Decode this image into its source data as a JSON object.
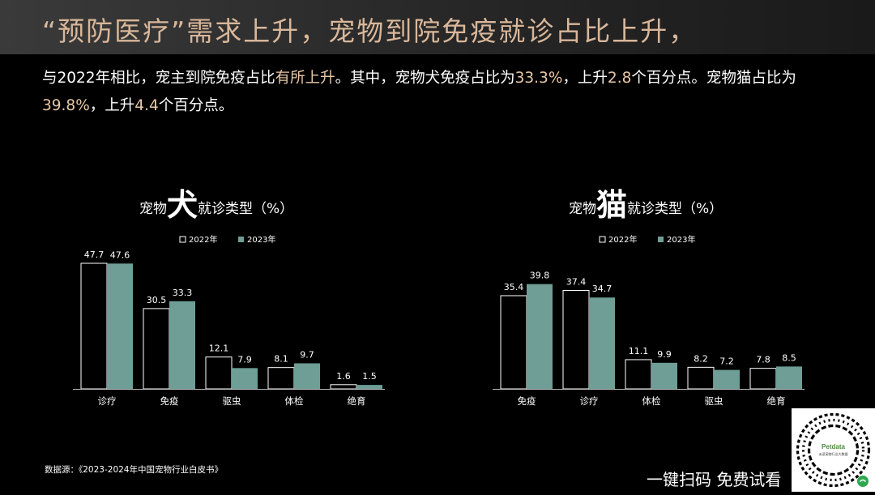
{
  "header": {
    "title": "“预防医疗”需求上升，宠物到院免疫就诊占比上升，"
  },
  "intro": {
    "p1": "与2022年相比，宠主到院免疫占比",
    "h1": "有所上升",
    "p2": "。其中，宠物犬免疫占比为",
    "h2": "33.3%",
    "p3": "，上升",
    "h3": "2.8",
    "p4": "个百分点。宠物猫占比为",
    "h4": "39.8%",
    "p5": "，上升",
    "h5": "4.4",
    "p6": "个百分点。"
  },
  "charts": [
    {
      "title_pre": "宠物",
      "title_big": "犬",
      "title_post": "就诊类型（%）"
    },
    {
      "title_pre": "宠物",
      "title_big": "猫",
      "title_post": "就诊类型（%）"
    }
  ],
  "chart_data": [
    {
      "type": "bar",
      "title": "宠物犬就诊类型（%）",
      "categories": [
        "诊疗",
        "免疫",
        "驱虫",
        "体检",
        "绝育"
      ],
      "series": [
        {
          "name": "2022年",
          "values": [
            47.7,
            30.5,
            12.1,
            8.1,
            1.6
          ],
          "color": "#000000"
        },
        {
          "name": "2023年",
          "values": [
            47.6,
            33.3,
            7.9,
            9.7,
            1.5
          ],
          "color": "#6e9e96"
        }
      ],
      "legend": "top"
    },
    {
      "type": "bar",
      "title": "宠物猫就诊类型（%）",
      "categories": [
        "免疫",
        "诊疗",
        "体检",
        "驱虫",
        "绝育"
      ],
      "series": [
        {
          "name": "2022年",
          "values": [
            35.4,
            37.4,
            11.1,
            8.2,
            7.8
          ],
          "color": "#000000"
        },
        {
          "name": "2023年",
          "values": [
            39.8,
            34.7,
            9.9,
            7.2,
            8.5
          ],
          "color": "#6e9e96"
        }
      ],
      "legend": "top"
    }
  ],
  "footer": {
    "source": "数据源：《2023-2024年中国宠物行业白皮书》",
    "cta": "一键扫码 免费试看"
  },
  "qr": {
    "brand": "Petdata",
    "caption": "派读宠物行业大数据"
  },
  "colors": {
    "accent_title": "#d9b79a",
    "highlight": "#e8c9a8",
    "bar_2023": "#6e9e96"
  }
}
